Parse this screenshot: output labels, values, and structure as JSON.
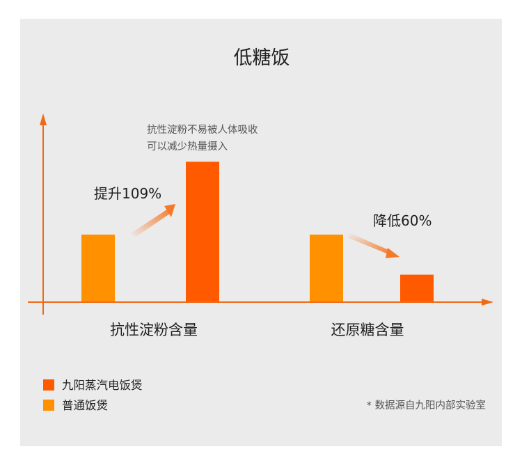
{
  "chart_data": {
    "type": "bar",
    "title": "低糖饭",
    "categories": [
      "抗性淀粉含量",
      "还原糖含量"
    ],
    "series": [
      {
        "name": "普通饭煲",
        "color": "#ff9000",
        "values": [
          100,
          100
        ]
      },
      {
        "name": "九阳蒸汽电饭煲",
        "color": "#ff5a00",
        "values": [
          209,
          40
        ]
      }
    ],
    "annotations": [
      {
        "text": "提升109%",
        "category": 0
      },
      {
        "text": "降低60%",
        "category": 1
      },
      {
        "lines": [
          "抗性淀粉不易被人体吸收",
          "可以减少热量摄入"
        ],
        "category": 0
      }
    ],
    "axis_color": "#f06a14",
    "ylim": [
      0,
      250
    ],
    "grid": false,
    "legend_position": "bottom-left",
    "footnote": "* 数据源自九阳内部实验室"
  }
}
